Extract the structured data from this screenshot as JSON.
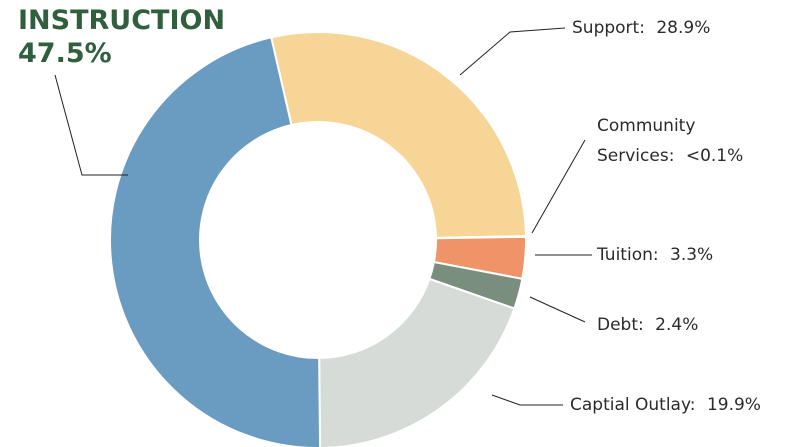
{
  "chart_data": {
    "type": "donut",
    "categories": [
      "Support",
      "Community Services",
      "Tuition",
      "Debt",
      "Captial Outlay",
      "INSTRUCTION"
    ],
    "values": [
      28.9,
      0.05,
      3.3,
      2.4,
      19.9,
      47.5
    ],
    "value_labels": [
      "28.9%",
      "<0.1%",
      "3.3%",
      "2.4%",
      "19.9%",
      "47.5%"
    ],
    "colors": [
      "#f7d596",
      "#f3efe4",
      "#ef9469",
      "#7a8e7e",
      "#d6dbd7",
      "#6a9bc0"
    ]
  }
}
